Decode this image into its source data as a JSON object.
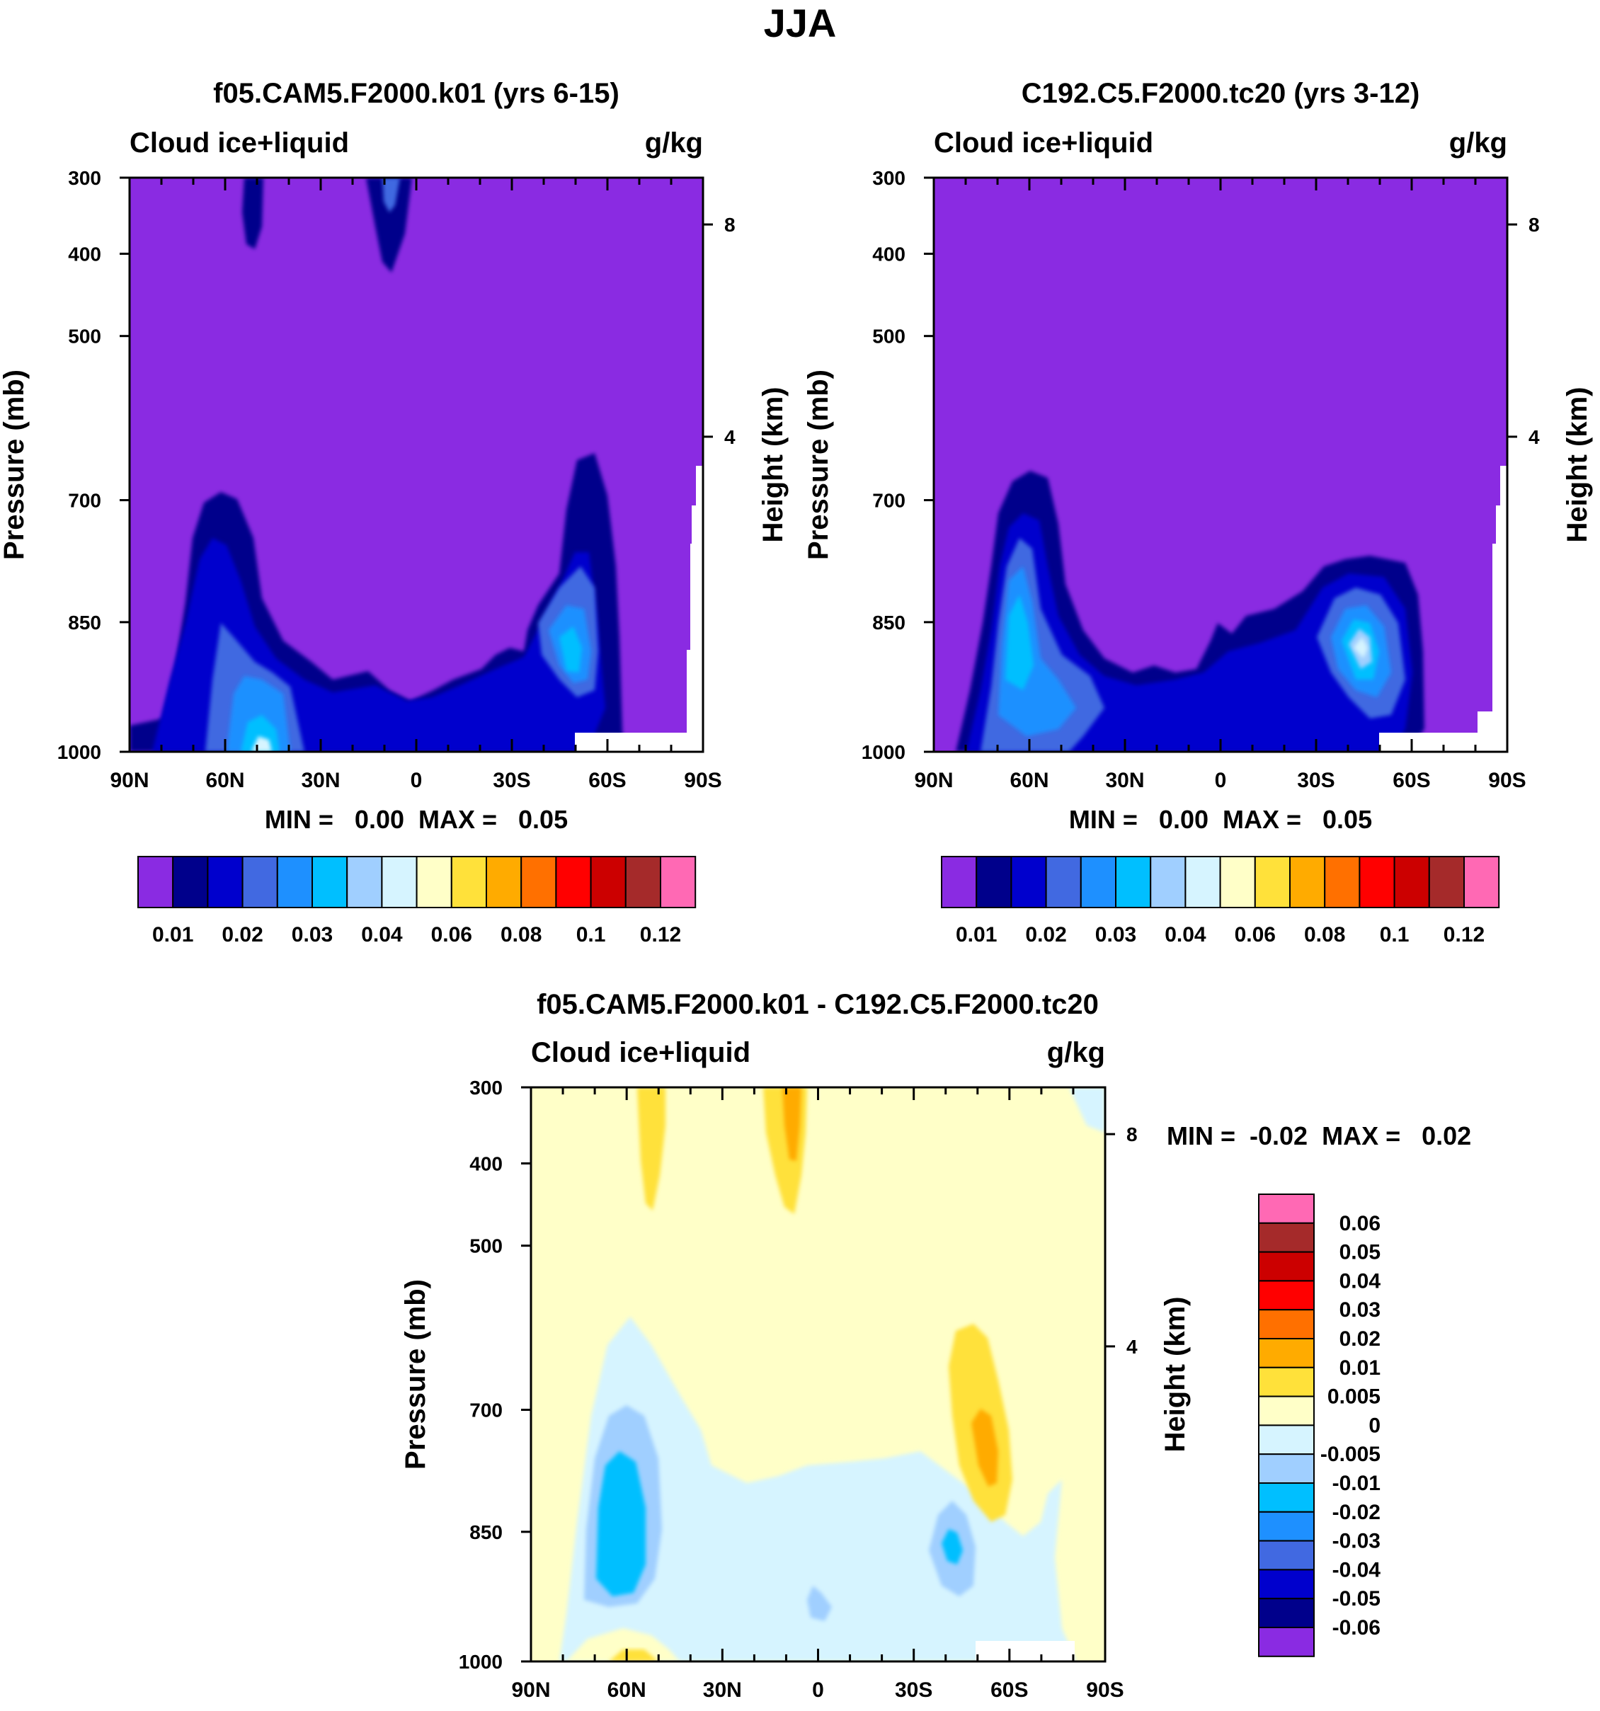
{
  "page_title": "JJA",
  "colors": {
    "purple": "#8a2be2",
    "navy": "#00008b",
    "blue": "#0000cd",
    "royal": "#4169e1",
    "dodger": "#1e90ff",
    "deepsky": "#00bfff",
    "lightblue": "#a0cfff",
    "paleblue": "#d6f4ff",
    "cream": "#ffffc8",
    "gold": "#ffe13a",
    "orange": "#ffab00",
    "darkorange": "#ff7000",
    "red": "#ff0000",
    "crimson": "#cc0000",
    "brown": "#a52a2a",
    "pink": "#ff69b4"
  },
  "chart_data": [
    {
      "type": "contour",
      "id": "panel-model-a",
      "title": "f05.CAM5.F2000.k01 (yrs 6-15)",
      "left_label": "Cloud ice+liquid",
      "right_label": "g/kg",
      "ylabel": "Pressure (mb)",
      "ylabel_right": "Height (km)",
      "x_ticks": [
        "90N",
        "60N",
        "30N",
        "0",
        "30S",
        "60S",
        "90S"
      ],
      "y_ticks": [
        "300",
        "400",
        "500",
        "700",
        "850",
        "1000"
      ],
      "height_ticks": [
        "8",
        "4"
      ],
      "xlim": [
        -90,
        90
      ],
      "ylim": [
        1000,
        300
      ],
      "stats": "MIN =   0.00  MAX =   0.05",
      "colorbar": {
        "orientation": "horizontal",
        "levels": [
          "0.01",
          "0.02",
          "0.03",
          "0.04",
          "0.06",
          "0.08",
          "0.1",
          "0.12"
        ],
        "colors": [
          "#8a2be2",
          "#00008b",
          "#0000cd",
          "#4169e1",
          "#1e90ff",
          "#00bfff",
          "#a0cfff",
          "#d6f4ff",
          "#ffffc8",
          "#ffe13a",
          "#ffab00",
          "#ff7000",
          "#ff0000",
          "#cc0000",
          "#a52a2a",
          "#ff69b4"
        ]
      }
    },
    {
      "type": "contour",
      "id": "panel-model-b",
      "title": "C192.C5.F2000.tc20 (yrs 3-12)",
      "left_label": "Cloud ice+liquid",
      "right_label": "g/kg",
      "ylabel": "Pressure (mb)",
      "ylabel_right": "Height (km)",
      "x_ticks": [
        "90N",
        "60N",
        "30N",
        "0",
        "30S",
        "60S",
        "90S"
      ],
      "y_ticks": [
        "300",
        "400",
        "500",
        "700",
        "850",
        "1000"
      ],
      "height_ticks": [
        "8",
        "4"
      ],
      "xlim": [
        -90,
        90
      ],
      "ylim": [
        1000,
        300
      ],
      "stats": "MIN =   0.00  MAX =   0.05",
      "colorbar": {
        "orientation": "horizontal",
        "levels": [
          "0.01",
          "0.02",
          "0.03",
          "0.04",
          "0.06",
          "0.08",
          "0.1",
          "0.12"
        ],
        "colors": [
          "#8a2be2",
          "#00008b",
          "#0000cd",
          "#4169e1",
          "#1e90ff",
          "#00bfff",
          "#a0cfff",
          "#d6f4ff",
          "#ffffc8",
          "#ffe13a",
          "#ffab00",
          "#ff7000",
          "#ff0000",
          "#cc0000",
          "#a52a2a",
          "#ff69b4"
        ]
      }
    },
    {
      "type": "contour",
      "id": "panel-difference",
      "title": "f05.CAM5.F2000.k01 - C192.C5.F2000.tc20",
      "left_label": "Cloud ice+liquid",
      "right_label": "g/kg",
      "ylabel": "Pressure (mb)",
      "ylabel_right": "Height (km)",
      "x_ticks": [
        "90N",
        "60N",
        "30N",
        "0",
        "30S",
        "60S",
        "90S"
      ],
      "y_ticks": [
        "300",
        "400",
        "500",
        "700",
        "850",
        "1000"
      ],
      "height_ticks": [
        "8",
        "4"
      ],
      "xlim": [
        -90,
        90
      ],
      "ylim": [
        1000,
        300
      ],
      "stats": "MIN =  -0.02  MAX =   0.02",
      "colorbar": {
        "orientation": "vertical",
        "levels": [
          "0.06",
          "0.05",
          "0.04",
          "0.03",
          "0.02",
          "0.01",
          "0.005",
          "0",
          "-0.005",
          "-0.01",
          "-0.02",
          "-0.03",
          "-0.04",
          "-0.05",
          "-0.06"
        ],
        "colors": [
          "#ff69b4",
          "#a52a2a",
          "#cc0000",
          "#ff0000",
          "#ff7000",
          "#ffab00",
          "#ffe13a",
          "#ffffc8",
          "#d6f4ff",
          "#a0cfff",
          "#00bfff",
          "#1e90ff",
          "#4169e1",
          "#0000cd",
          "#00008b",
          "#8a2be2"
        ]
      }
    }
  ]
}
